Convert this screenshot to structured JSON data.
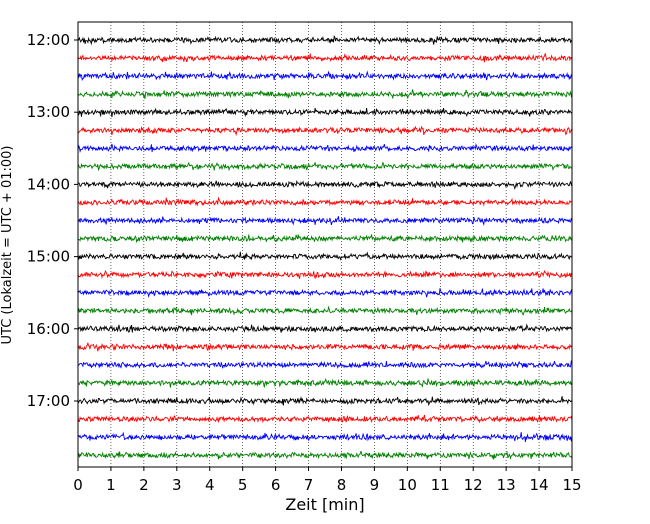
{
  "chart_data": {
    "type": "line",
    "title": "",
    "xlabel": "Zeit  [min]",
    "ylabel": "UTC (Lokalzeit = UTC + 01:00)",
    "xlim": [
      0,
      15
    ],
    "x_ticks": [
      "0",
      "1",
      "2",
      "3",
      "4",
      "5",
      "6",
      "7",
      "8",
      "9",
      "10",
      "11",
      "12",
      "13",
      "14",
      "15"
    ],
    "y_ticks": [
      "12:00",
      "13:00",
      "14:00",
      "15:00",
      "16:00",
      "17:00"
    ],
    "grid": "vertical dotted",
    "trace_interval_minutes": 15,
    "colors": [
      "#000000",
      "#ff0000",
      "#0000ff",
      "#008000"
    ],
    "series": [
      {
        "start": "12:00",
        "color": "#000000"
      },
      {
        "start": "12:15",
        "color": "#ff0000"
      },
      {
        "start": "12:30",
        "color": "#0000ff"
      },
      {
        "start": "12:45",
        "color": "#008000"
      },
      {
        "start": "13:00",
        "color": "#000000"
      },
      {
        "start": "13:15",
        "color": "#ff0000"
      },
      {
        "start": "13:30",
        "color": "#0000ff"
      },
      {
        "start": "13:45",
        "color": "#008000"
      },
      {
        "start": "14:00",
        "color": "#000000"
      },
      {
        "start": "14:15",
        "color": "#ff0000"
      },
      {
        "start": "14:30",
        "color": "#0000ff"
      },
      {
        "start": "14:45",
        "color": "#008000"
      },
      {
        "start": "15:00",
        "color": "#000000"
      },
      {
        "start": "15:15",
        "color": "#ff0000"
      },
      {
        "start": "15:30",
        "color": "#0000ff"
      },
      {
        "start": "15:45",
        "color": "#008000"
      },
      {
        "start": "16:00",
        "color": "#000000"
      },
      {
        "start": "16:15",
        "color": "#ff0000"
      },
      {
        "start": "16:30",
        "color": "#0000ff"
      },
      {
        "start": "16:45",
        "color": "#008000"
      },
      {
        "start": "17:00",
        "color": "#000000"
      },
      {
        "start": "17:15",
        "color": "#ff0000"
      },
      {
        "start": "17:30",
        "color": "#0000ff"
      },
      {
        "start": "17:45",
        "color": "#008000"
      }
    ]
  }
}
